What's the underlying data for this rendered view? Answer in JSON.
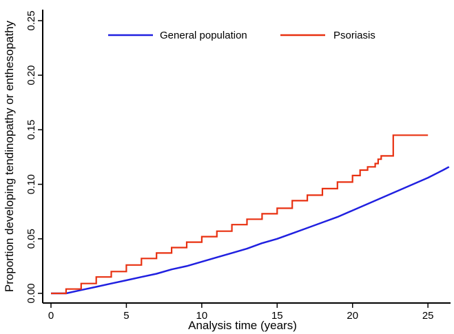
{
  "chart_data": {
    "type": "line",
    "title": "",
    "xlabel": "Analysis time (years)",
    "ylabel": "Proportion developing tendinopathy or enthesopathy",
    "xlim": [
      0,
      26.5
    ],
    "ylim": [
      0,
      0.25
    ],
    "x_ticks": [
      0,
      5,
      10,
      15,
      20,
      25
    ],
    "y_ticks": [
      0,
      0.05,
      0.1,
      0.15,
      0.2,
      0.25
    ],
    "x_tick_labels": [
      "0",
      "5",
      "10",
      "15",
      "20",
      "25"
    ],
    "y_tick_labels": [
      "0.00",
      "0.05",
      "0.10",
      "0.15",
      "0.20",
      "0.25"
    ],
    "grid": false,
    "legend": {
      "placement": "top",
      "entries": [
        "General population",
        "Psoriasis"
      ]
    },
    "series": [
      {
        "name": "General population",
        "color": "#2020e0",
        "points": [
          [
            0,
            0
          ],
          [
            1,
            0
          ],
          [
            2,
            0.003
          ],
          [
            3,
            0.006
          ],
          [
            4,
            0.009
          ],
          [
            5,
            0.012
          ],
          [
            6,
            0.015
          ],
          [
            7,
            0.018
          ],
          [
            8,
            0.022
          ],
          [
            9,
            0.025
          ],
          [
            10,
            0.029
          ],
          [
            11,
            0.033
          ],
          [
            12,
            0.037
          ],
          [
            13,
            0.041
          ],
          [
            14,
            0.046
          ],
          [
            15,
            0.05
          ],
          [
            16,
            0.055
          ],
          [
            17,
            0.06
          ],
          [
            18,
            0.065
          ],
          [
            19,
            0.07
          ],
          [
            20,
            0.076
          ],
          [
            21,
            0.082
          ],
          [
            22,
            0.088
          ],
          [
            23,
            0.094
          ],
          [
            24,
            0.1
          ],
          [
            25,
            0.106
          ],
          [
            26,
            0.113
          ],
          [
            26.4,
            0.116
          ]
        ]
      },
      {
        "name": "Psoriasis",
        "color": "#e83010",
        "step_points": [
          [
            0,
            0
          ],
          [
            1,
            0.004
          ],
          [
            2,
            0.009
          ],
          [
            3,
            0.015
          ],
          [
            4,
            0.02
          ],
          [
            5,
            0.026
          ],
          [
            6,
            0.032
          ],
          [
            7,
            0.037
          ],
          [
            8,
            0.042
          ],
          [
            9,
            0.047
          ],
          [
            10,
            0.052
          ],
          [
            11,
            0.057
          ],
          [
            12,
            0.063
          ],
          [
            13,
            0.068
          ],
          [
            14,
            0.073
          ],
          [
            15,
            0.078
          ],
          [
            16,
            0.085
          ],
          [
            17,
            0.09
          ],
          [
            18,
            0.096
          ],
          [
            19,
            0.102
          ],
          [
            20,
            0.108
          ],
          [
            20.5,
            0.113
          ],
          [
            21,
            0.116
          ],
          [
            21.5,
            0.119
          ],
          [
            21.7,
            0.123
          ],
          [
            21.9,
            0.126
          ],
          [
            22.7,
            0.126
          ],
          [
            22.7,
            0.145
          ],
          [
            25,
            0.145
          ]
        ]
      }
    ]
  }
}
